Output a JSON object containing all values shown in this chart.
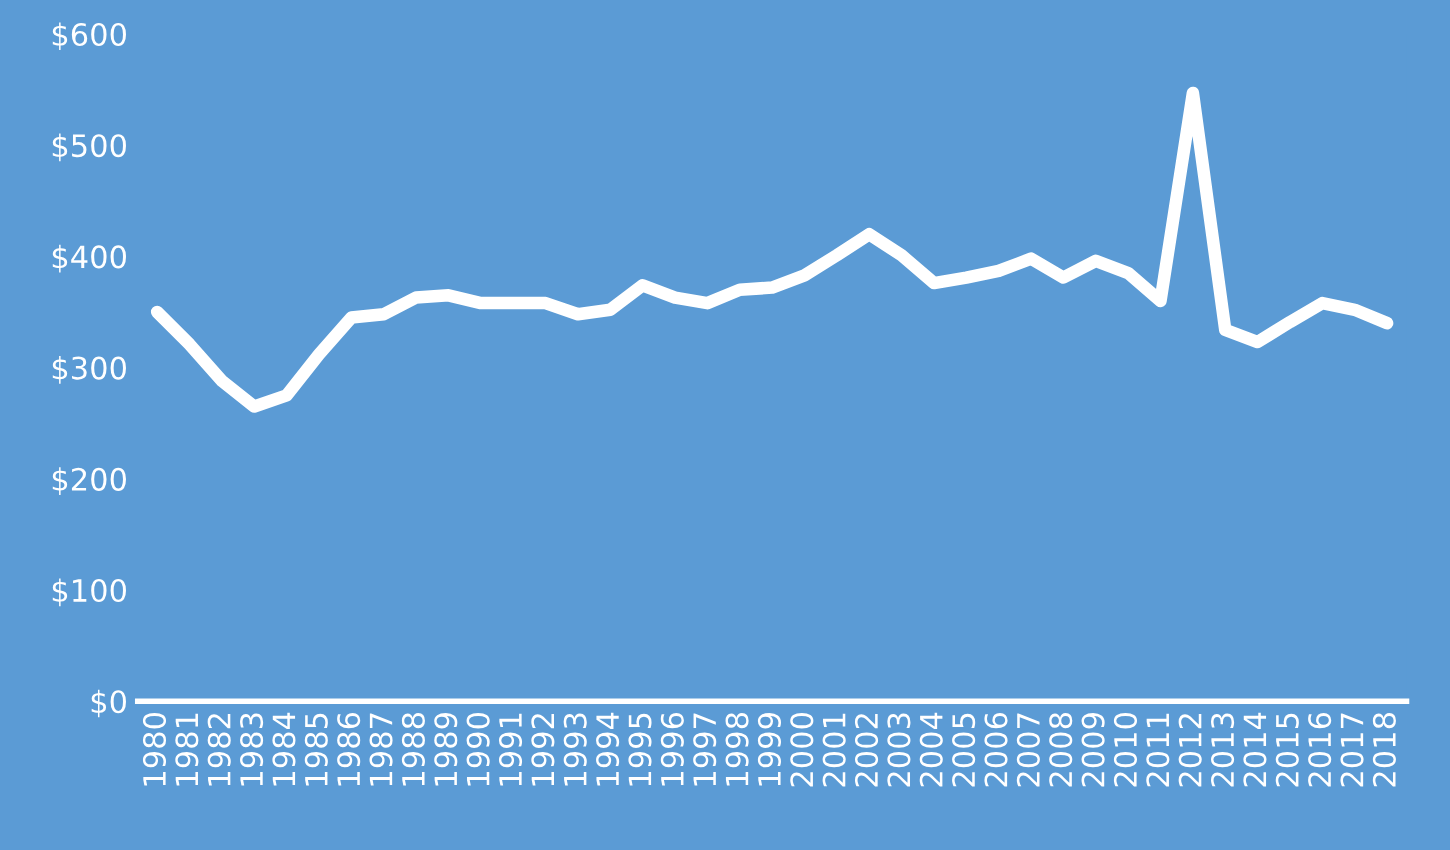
{
  "chart_data": {
    "type": "line",
    "categories": [
      "1980",
      "1981",
      "1982",
      "1983",
      "1984",
      "1985",
      "1986",
      "1987",
      "1988",
      "1989",
      "1990",
      "1991",
      "1992",
      "1993",
      "1994",
      "1995",
      "1996",
      "1997",
      "1998",
      "1999",
      "2000",
      "2001",
      "2002",
      "2003",
      "2004",
      "2005",
      "2006",
      "2007",
      "2008",
      "2009",
      "2010",
      "2011",
      "2012",
      "2013",
      "2014",
      "2015",
      "2016",
      "2017",
      "2018"
    ],
    "series": [
      {
        "color": "#ffffff",
        "values": [
          350,
          321,
          288,
          265,
          275,
          312,
          345,
          348,
          363,
          365,
          358,
          358,
          358,
          348,
          352,
          374,
          363,
          358,
          370,
          372,
          383,
          401,
          420,
          401,
          376,
          381,
          387,
          398,
          381,
          396,
          385,
          360,
          547,
          334,
          323,
          341,
          358,
          352,
          340
        ]
      }
    ],
    "ylim": [
      0,
      600
    ],
    "yticks": [
      {
        "value": 0,
        "label": "$0"
      },
      {
        "value": 100,
        "label": "$100"
      },
      {
        "value": 200,
        "label": "$200"
      },
      {
        "value": 300,
        "label": "$300"
      },
      {
        "value": 400,
        "label": "$400"
      },
      {
        "value": 500,
        "label": "$500"
      },
      {
        "value": 600,
        "label": "$600"
      }
    ],
    "grid": false,
    "legend": false,
    "marker": "none",
    "line_style": "solid"
  }
}
